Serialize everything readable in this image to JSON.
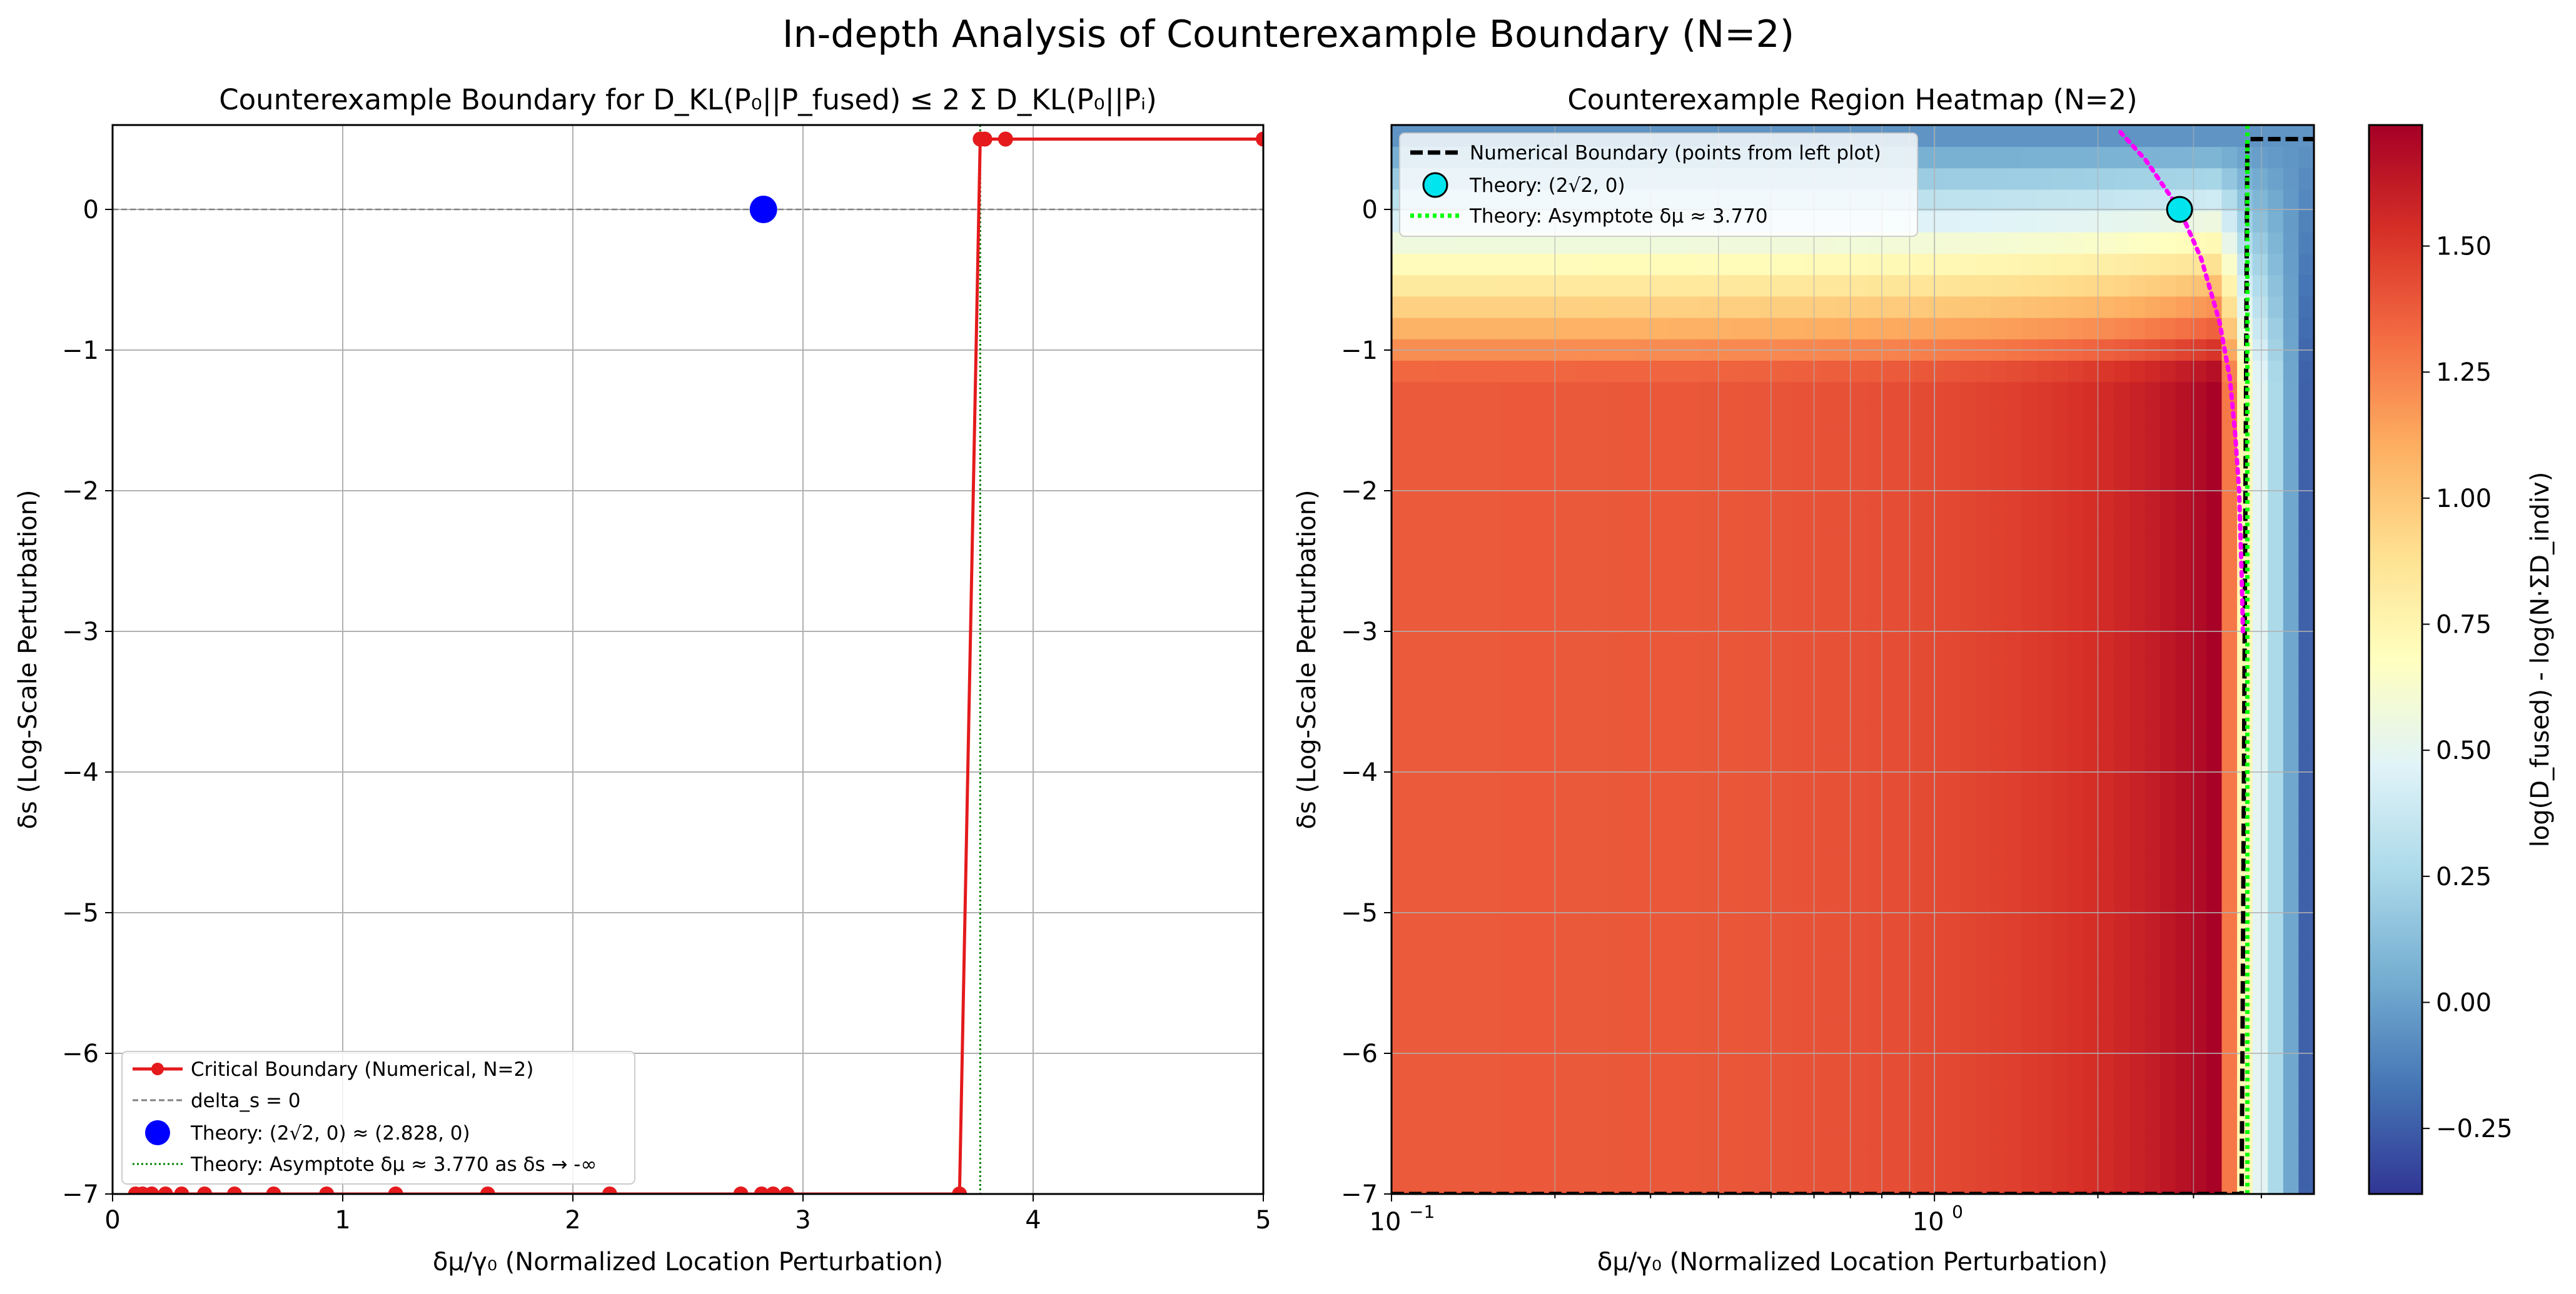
{
  "suptitle": "In-depth Analysis of Counterexample Boundary (N=2)",
  "colors": {
    "boundary": "#e41a1c",
    "theory_point": "#0000ff",
    "asymptote_left": "#008000",
    "zero_line": "#808080",
    "heat_boundary": "#000000",
    "heat_theory_point": "#00e5ee",
    "heat_asymptote": "#00ff00",
    "theory_curve": "#ff00ff",
    "grid": "#b0b0b0"
  },
  "chart_data": [
    {
      "type": "line",
      "title": "Counterexample Boundary for D_KL(P₀||P_fused) ≤ 2 Σ D_KL(P₀||Pᵢ)",
      "xlabel": "δμ/γ₀ (Normalized Location Perturbation)",
      "ylabel": "δs (Log-Scale Perturbation)",
      "xlim": [
        0,
        5
      ],
      "ylim": [
        -7,
        0.6
      ],
      "xticks": [
        0,
        1,
        2,
        3,
        4,
        5
      ],
      "yticks": [
        0,
        -1,
        -2,
        -3,
        -4,
        -5,
        -6,
        -7
      ],
      "xtick_labels": [
        "0",
        "1",
        "2",
        "3",
        "4",
        "5"
      ],
      "ytick_labels": [
        "0",
        "−1",
        "−2",
        "−3",
        "−4",
        "−5",
        "−6",
        "−7"
      ],
      "grid": true,
      "legend_position": "lower-left",
      "series": [
        {
          "name": "Critical Boundary (Numerical, N=2)",
          "kind": "line-marker",
          "x": [
            0.1,
            0.13,
            0.17,
            0.23,
            0.3,
            0.4,
            0.53,
            0.7,
            0.93,
            1.23,
            1.63,
            2.16,
            2.73,
            2.82,
            2.87,
            2.93,
            3.68,
            3.77,
            3.79,
            3.88,
            5.0
          ],
          "y": [
            -7,
            -7,
            -7,
            -7,
            -7,
            -7,
            -7,
            -7,
            -7,
            -7,
            -7,
            -7,
            -7,
            -7,
            -7,
            -7,
            -7,
            0.5,
            0.5,
            0.5,
            0.5
          ]
        },
        {
          "name": "delta_s = 0",
          "kind": "hline",
          "y": 0
        },
        {
          "name": "Theory: (2√2, 0) ≈ (2.828, 0)",
          "kind": "point",
          "x": 2.828,
          "y": 0
        },
        {
          "name": "Theory: Asymptote δμ ≈ 3.770 as δs → -∞",
          "kind": "vline",
          "x": 3.77
        }
      ]
    },
    {
      "type": "heatmap",
      "title": "Counterexample Region Heatmap (N=2)",
      "xlabel": "δμ/γ₀ (Normalized Location Perturbation)",
      "ylabel": "δs (Log-Scale Perturbation)",
      "xscale": "log",
      "xlim": [
        0.1,
        5
      ],
      "ylim": [
        -7,
        0.6
      ],
      "xtick_values": [
        0.1,
        1
      ],
      "xtick_labels": [
        [
          "10",
          "−1"
        ],
        [
          "10",
          "0"
        ]
      ],
      "yticks": [
        0,
        -1,
        -2,
        -3,
        -4,
        -5,
        -6,
        -7
      ],
      "ytick_labels": [
        "0",
        "−1",
        "−2",
        "−3",
        "−4",
        "−5",
        "−6",
        "−7"
      ],
      "colorbar_label": "log(D_fused) - log(N·ΣD_indiv)",
      "colorbar_range": [
        -0.38,
        1.74
      ],
      "colorbar_ticks": [
        -0.25,
        0,
        0.25,
        0.5,
        0.75,
        1.0,
        1.25,
        1.5
      ],
      "colorbar_tick_labels": [
        "−0.25",
        "0.00",
        "0.25",
        "0.50",
        "0.75",
        "1.00",
        "1.25",
        "1.50"
      ],
      "colormap": "RdYlBu_r",
      "grid": true,
      "legend_position": "top-left",
      "series": [
        {
          "name": "Numerical Boundary (points from left plot)",
          "kind": "dashed-line",
          "x": [
            0.1,
            0.13,
            0.17,
            0.23,
            0.3,
            0.4,
            0.53,
            0.7,
            0.93,
            1.23,
            1.63,
            2.16,
            2.73,
            2.82,
            2.87,
            2.93,
            3.68,
            3.77,
            3.79,
            3.88,
            5.0
          ],
          "y": [
            -7,
            -7,
            -7,
            -7,
            -7,
            -7,
            -7,
            -7,
            -7,
            -7,
            -7,
            -7,
            -7,
            -7,
            -7,
            -7,
            -7,
            0.5,
            0.5,
            0.5,
            0.5
          ]
        },
        {
          "name": "Theory: (2√2, 0)",
          "kind": "point",
          "x": 2.828,
          "y": 0
        },
        {
          "name": "Theory: Asymptote δμ ≈ 3.770",
          "kind": "dotted-vline",
          "x": 3.77
        },
        {
          "kind": "dotted-curve",
          "x": [
            2.2,
            2.45,
            2.828,
            3.1,
            3.35,
            3.5,
            3.58,
            3.64,
            3.68,
            3.7
          ],
          "y": [
            0.55,
            0.35,
            0.0,
            -0.35,
            -0.8,
            -1.2,
            -1.6,
            -2.0,
            -2.6,
            -3.0
          ]
        }
      ]
    }
  ]
}
